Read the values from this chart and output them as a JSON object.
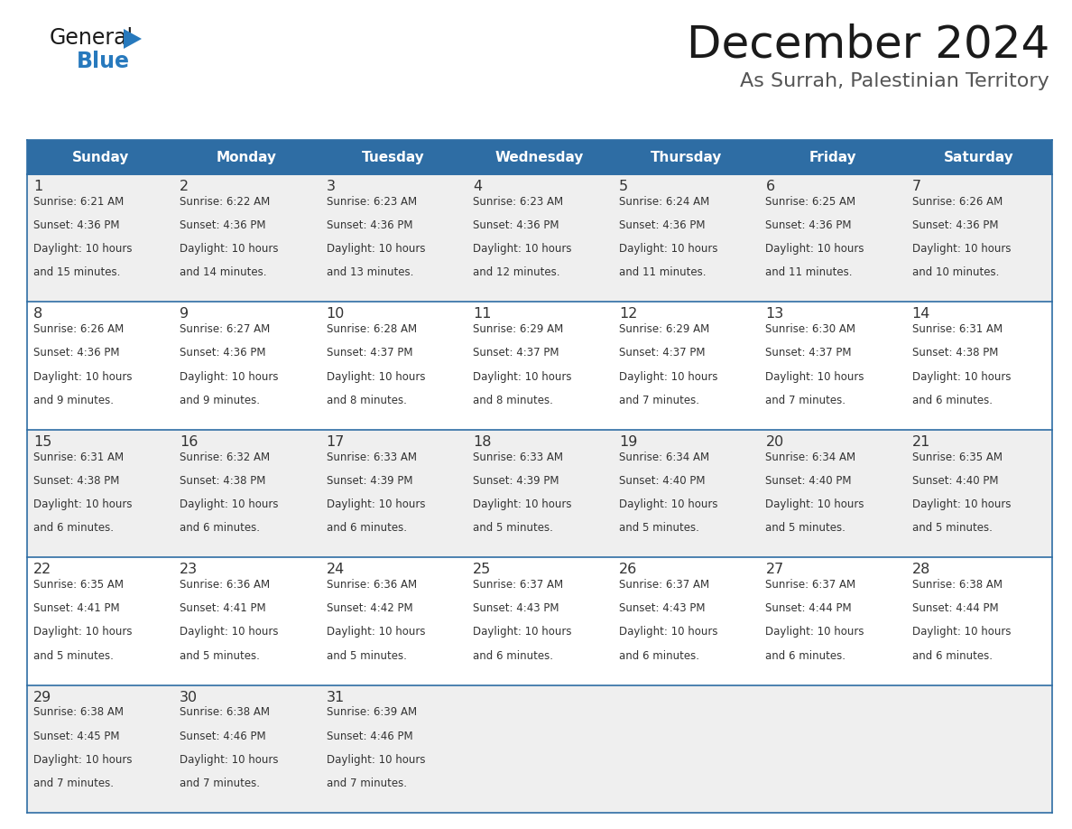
{
  "title": "December 2024",
  "subtitle": "As Surrah, Palestinian Territory",
  "days_of_week": [
    "Sunday",
    "Monday",
    "Tuesday",
    "Wednesday",
    "Thursday",
    "Friday",
    "Saturday"
  ],
  "header_bg_color": "#2E6DA4",
  "header_text_color": "#FFFFFF",
  "cell_bg_color_odd": "#EFEFEF",
  "cell_bg_color_even": "#FFFFFF",
  "cell_text_color": "#333333",
  "day_num_color": "#333333",
  "border_color": "#2E6DA4",
  "title_color": "#1a1a1a",
  "subtitle_color": "#555555",
  "logo_general_color": "#1a1a1a",
  "logo_blue_color": "#2779BD",
  "fig_width": 11.88,
  "fig_height": 9.18,
  "dpi": 100,
  "calendar_data": [
    {
      "day": 1,
      "col": 0,
      "row": 0,
      "sunrise": "6:21 AM",
      "sunset": "4:36 PM",
      "daylight": "10 hours and 15 minutes."
    },
    {
      "day": 2,
      "col": 1,
      "row": 0,
      "sunrise": "6:22 AM",
      "sunset": "4:36 PM",
      "daylight": "10 hours and 14 minutes."
    },
    {
      "day": 3,
      "col": 2,
      "row": 0,
      "sunrise": "6:23 AM",
      "sunset": "4:36 PM",
      "daylight": "10 hours and 13 minutes."
    },
    {
      "day": 4,
      "col": 3,
      "row": 0,
      "sunrise": "6:23 AM",
      "sunset": "4:36 PM",
      "daylight": "10 hours and 12 minutes."
    },
    {
      "day": 5,
      "col": 4,
      "row": 0,
      "sunrise": "6:24 AM",
      "sunset": "4:36 PM",
      "daylight": "10 hours and 11 minutes."
    },
    {
      "day": 6,
      "col": 5,
      "row": 0,
      "sunrise": "6:25 AM",
      "sunset": "4:36 PM",
      "daylight": "10 hours and 11 minutes."
    },
    {
      "day": 7,
      "col": 6,
      "row": 0,
      "sunrise": "6:26 AM",
      "sunset": "4:36 PM",
      "daylight": "10 hours and 10 minutes."
    },
    {
      "day": 8,
      "col": 0,
      "row": 1,
      "sunrise": "6:26 AM",
      "sunset": "4:36 PM",
      "daylight": "10 hours and 9 minutes."
    },
    {
      "day": 9,
      "col": 1,
      "row": 1,
      "sunrise": "6:27 AM",
      "sunset": "4:36 PM",
      "daylight": "10 hours and 9 minutes."
    },
    {
      "day": 10,
      "col": 2,
      "row": 1,
      "sunrise": "6:28 AM",
      "sunset": "4:37 PM",
      "daylight": "10 hours and 8 minutes."
    },
    {
      "day": 11,
      "col": 3,
      "row": 1,
      "sunrise": "6:29 AM",
      "sunset": "4:37 PM",
      "daylight": "10 hours and 8 minutes."
    },
    {
      "day": 12,
      "col": 4,
      "row": 1,
      "sunrise": "6:29 AM",
      "sunset": "4:37 PM",
      "daylight": "10 hours and 7 minutes."
    },
    {
      "day": 13,
      "col": 5,
      "row": 1,
      "sunrise": "6:30 AM",
      "sunset": "4:37 PM",
      "daylight": "10 hours and 7 minutes."
    },
    {
      "day": 14,
      "col": 6,
      "row": 1,
      "sunrise": "6:31 AM",
      "sunset": "4:38 PM",
      "daylight": "10 hours and 6 minutes."
    },
    {
      "day": 15,
      "col": 0,
      "row": 2,
      "sunrise": "6:31 AM",
      "sunset": "4:38 PM",
      "daylight": "10 hours and 6 minutes."
    },
    {
      "day": 16,
      "col": 1,
      "row": 2,
      "sunrise": "6:32 AM",
      "sunset": "4:38 PM",
      "daylight": "10 hours and 6 minutes."
    },
    {
      "day": 17,
      "col": 2,
      "row": 2,
      "sunrise": "6:33 AM",
      "sunset": "4:39 PM",
      "daylight": "10 hours and 6 minutes."
    },
    {
      "day": 18,
      "col": 3,
      "row": 2,
      "sunrise": "6:33 AM",
      "sunset": "4:39 PM",
      "daylight": "10 hours and 5 minutes."
    },
    {
      "day": 19,
      "col": 4,
      "row": 2,
      "sunrise": "6:34 AM",
      "sunset": "4:40 PM",
      "daylight": "10 hours and 5 minutes."
    },
    {
      "day": 20,
      "col": 5,
      "row": 2,
      "sunrise": "6:34 AM",
      "sunset": "4:40 PM",
      "daylight": "10 hours and 5 minutes."
    },
    {
      "day": 21,
      "col": 6,
      "row": 2,
      "sunrise": "6:35 AM",
      "sunset": "4:40 PM",
      "daylight": "10 hours and 5 minutes."
    },
    {
      "day": 22,
      "col": 0,
      "row": 3,
      "sunrise": "6:35 AM",
      "sunset": "4:41 PM",
      "daylight": "10 hours and 5 minutes."
    },
    {
      "day": 23,
      "col": 1,
      "row": 3,
      "sunrise": "6:36 AM",
      "sunset": "4:41 PM",
      "daylight": "10 hours and 5 minutes."
    },
    {
      "day": 24,
      "col": 2,
      "row": 3,
      "sunrise": "6:36 AM",
      "sunset": "4:42 PM",
      "daylight": "10 hours and 5 minutes."
    },
    {
      "day": 25,
      "col": 3,
      "row": 3,
      "sunrise": "6:37 AM",
      "sunset": "4:43 PM",
      "daylight": "10 hours and 6 minutes."
    },
    {
      "day": 26,
      "col": 4,
      "row": 3,
      "sunrise": "6:37 AM",
      "sunset": "4:43 PM",
      "daylight": "10 hours and 6 minutes."
    },
    {
      "day": 27,
      "col": 5,
      "row": 3,
      "sunrise": "6:37 AM",
      "sunset": "4:44 PM",
      "daylight": "10 hours and 6 minutes."
    },
    {
      "day": 28,
      "col": 6,
      "row": 3,
      "sunrise": "6:38 AM",
      "sunset": "4:44 PM",
      "daylight": "10 hours and 6 minutes."
    },
    {
      "day": 29,
      "col": 0,
      "row": 4,
      "sunrise": "6:38 AM",
      "sunset": "4:45 PM",
      "daylight": "10 hours and 7 minutes."
    },
    {
      "day": 30,
      "col": 1,
      "row": 4,
      "sunrise": "6:38 AM",
      "sunset": "4:46 PM",
      "daylight": "10 hours and 7 minutes."
    },
    {
      "day": 31,
      "col": 2,
      "row": 4,
      "sunrise": "6:39 AM",
      "sunset": "4:46 PM",
      "daylight": "10 hours and 7 minutes."
    }
  ]
}
